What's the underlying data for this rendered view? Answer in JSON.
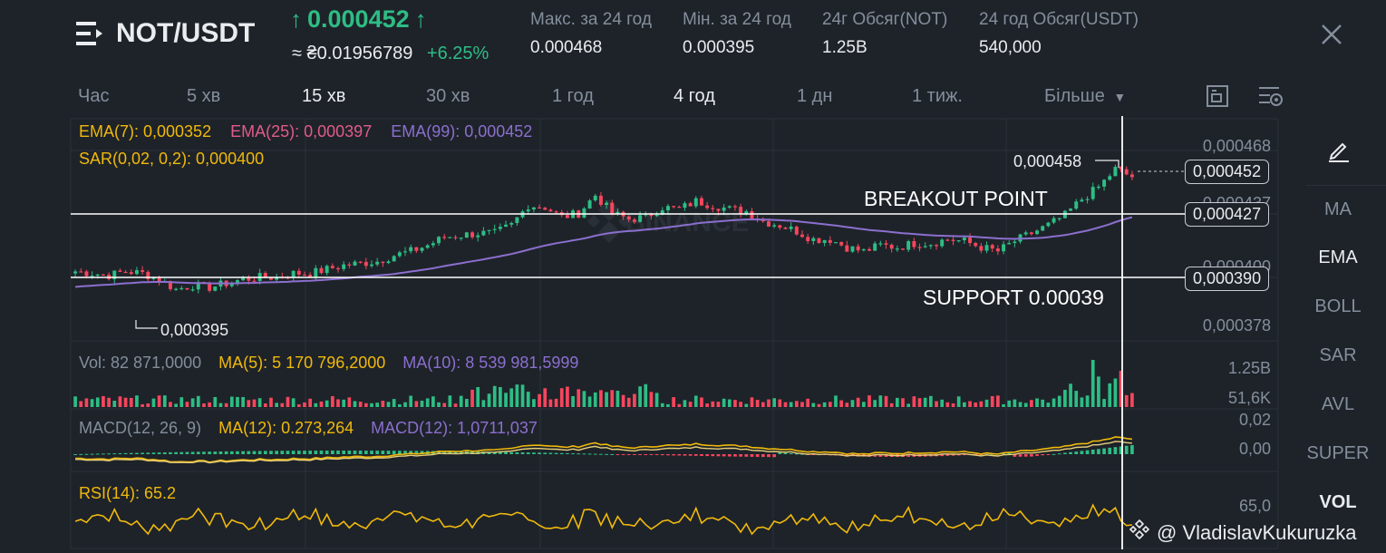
{
  "header": {
    "pair": "NOT/USDT",
    "price": "0.000452",
    "approx": "≈ ₴0.01956789",
    "change": "+6.25%",
    "stats": [
      {
        "label": "Макс. за 24 год",
        "value": "0.000468"
      },
      {
        "label": "Мін. за 24 год",
        "value": "0.000395"
      },
      {
        "label": "24г Обсяг(NOT)",
        "value": "1.25B"
      },
      {
        "label": "24 год Обсяг(USDT)",
        "value": "540,000"
      }
    ]
  },
  "timeframes": [
    "Час",
    "5 хв",
    "15 хв",
    "30 хв",
    "1 год",
    "4 год",
    "1 дн",
    "1 тиж.",
    "Більше"
  ],
  "active_timeframes": [
    "15 хв",
    "4 год"
  ],
  "indicators": {
    "ema7": "EMA(7): 0,000352",
    "ema25": "EMA(25): 0,000397",
    "ema99": "EMA(99): 0,000452",
    "sar": "SAR(0,02, 0,2): 0,000400",
    "vol": "Vol: 82 871,0000",
    "vol_ma5": "MA(5): 5 170 796,2000",
    "vol_ma10": "MA(10): 8 539 981,5999",
    "macd": "MACD(12, 26, 9)",
    "macd_ma": "MA(12): 0.273,264",
    "macd_val": "MACD(12): 1,0711,037",
    "rsi": "RSI(14): 65.2"
  },
  "price_axis": {
    "top": "0,000468",
    "a": "0,000437",
    "b": "0,000400",
    "bottom": "0,000378"
  },
  "price_tags": {
    "current": "0,000452",
    "breakout": "0,000427",
    "support": "0,000390"
  },
  "chart_labels": {
    "high": "0,000458",
    "low": "0,000395"
  },
  "annotations": {
    "breakout": "BREAKOUT POINT",
    "support": "SUPPORT 0.00039"
  },
  "volume_axis": {
    "top": "1.25B",
    "bottom": "51,6K"
  },
  "macd_axis": {
    "top": "0,02",
    "bottom": "0,00"
  },
  "rsi_axis": {
    "value": "65,0"
  },
  "sidebar": [
    "MA",
    "EMA",
    "BOLL",
    "SAR",
    "AVL",
    "SUPER",
    "VOL"
  ],
  "sidebar_active": [
    "EMA",
    "VOL"
  ],
  "watermark": "BINANCE",
  "credit": "@ VladislavKukuruzka",
  "colors": {
    "up": "#2ebd85",
    "down": "#f6465d",
    "ema7": "#f0b90b",
    "ema25": "#e25b8a",
    "ema99": "#8b6fcf",
    "bg": "#1e2329"
  },
  "icons": [
    "menu-icon",
    "arrow-up-icon",
    "close-icon",
    "fullscreen-icon",
    "indicator-settings-icon",
    "pencil-icon",
    "caret-down-icon",
    "binance-logo-icon"
  ],
  "chart_data": {
    "type": "candlestick",
    "y_range": [
      0.000378,
      0.000468
    ],
    "closes": [
      0.000405,
      0.000404,
      0.000403,
      0.000405,
      0.000404,
      0.000401,
      0.000396,
      0.000398,
      0.000397,
      0.000399,
      0.000401,
      0.000402,
      0.000402,
      0.000404,
      0.000404,
      0.000406,
      0.000408,
      0.000409,
      0.00041,
      0.000413,
      0.000415,
      0.000418,
      0.000422,
      0.000423,
      0.000424,
      0.000424,
      0.000428,
      0.000438,
      0.000437,
      0.000432,
      0.000434,
      0.000443,
      0.000434,
      0.000431,
      0.000432,
      0.000437,
      0.000436,
      0.00044,
      0.000438,
      0.000436,
      0.000435,
      0.00043,
      0.000428,
      0.000425,
      0.000421,
      0.000421,
      0.000417,
      0.000415,
      0.000418,
      0.000417,
      0.000419,
      0.000419,
      0.000421,
      0.00042,
      0.000417,
      0.000415,
      0.00042,
      0.000424,
      0.000428,
      0.000433,
      0.000441,
      0.000447,
      0.000456,
      0.000452
    ]
  }
}
